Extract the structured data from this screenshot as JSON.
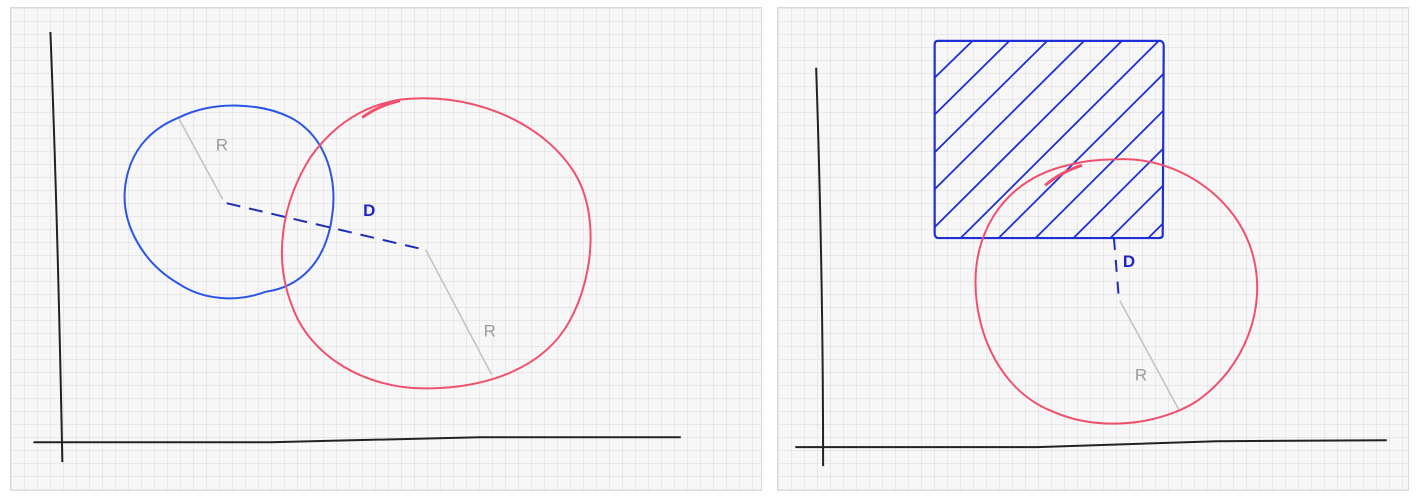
{
  "left_diagram": {
    "labels": {
      "radius_small": "R",
      "radius_large": "R",
      "distance": "D"
    }
  },
  "right_diagram": {
    "labels": {
      "distance": "D",
      "radius": "R"
    }
  },
  "colors": {
    "axis": "#222222",
    "circle_blue": "#2b55e6",
    "circle_red": "#f0506e",
    "radius_line": "#c4c4c4",
    "distance_line": "#1f2db8",
    "label_gray": "#9b9b9b",
    "label_blue": "#1f25c8",
    "hatch": "#1f2fd6"
  }
}
